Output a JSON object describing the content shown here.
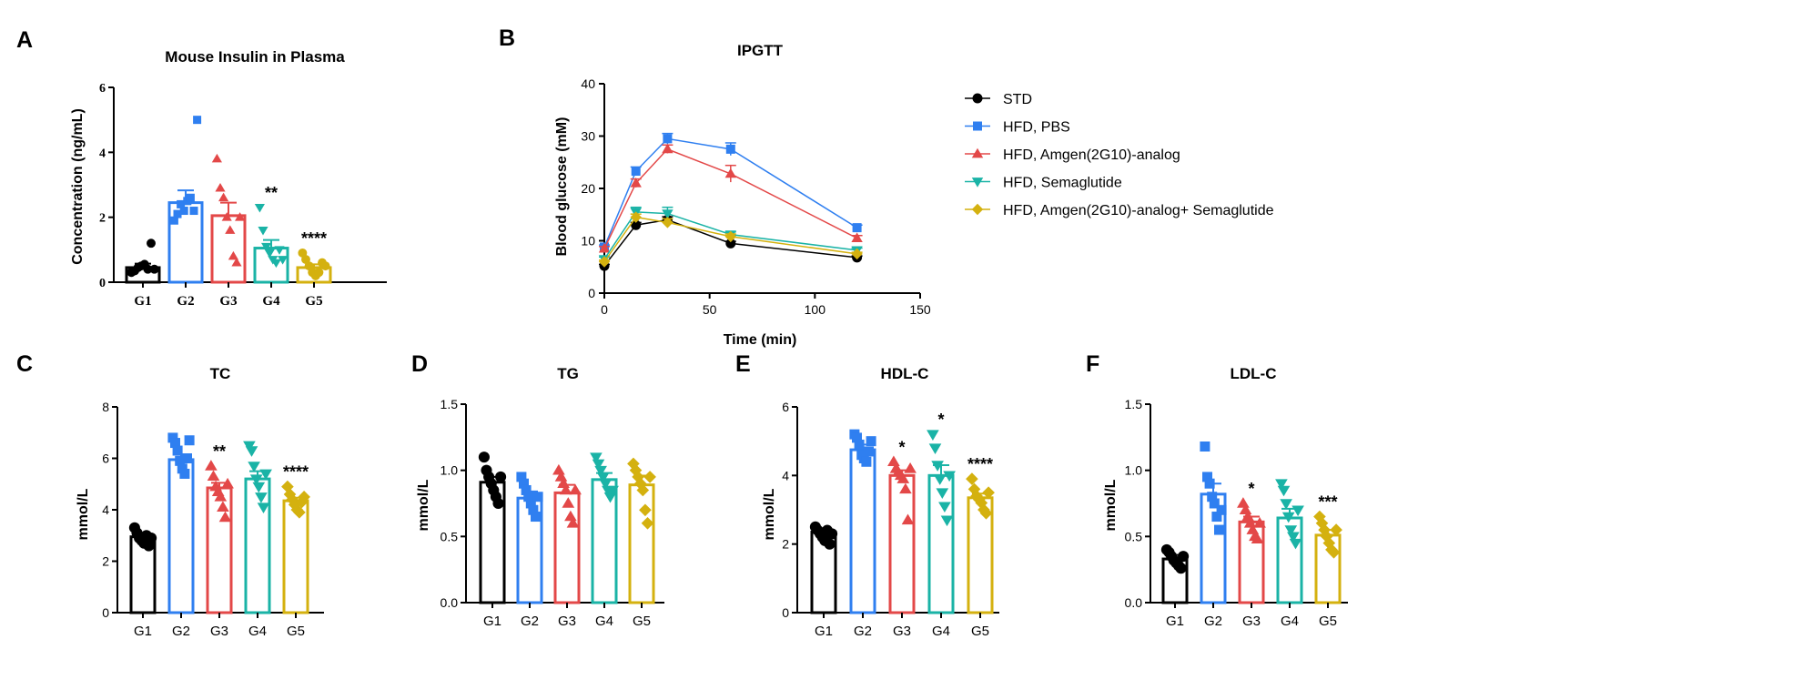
{
  "colors": {
    "G1": "#000000",
    "G2": "#2f7ff0",
    "G3": "#e34848",
    "G4": "#1ab3a6",
    "G5": "#d4b10f"
  },
  "panels": {
    "A": "A",
    "B": "B",
    "C": "C",
    "D": "D",
    "E": "E",
    "F": "F"
  },
  "chart_data": [
    {
      "id": "A",
      "type": "bar",
      "title": "Mouse  Insulin in Plasma",
      "ylabel": "Concentration (ng/mL)",
      "ylim": [
        0,
        6
      ],
      "yticks": [
        0,
        2,
        4,
        6
      ],
      "categories": [
        "G1",
        "G2",
        "G3",
        "G4",
        "G5"
      ],
      "values": [
        0.45,
        2.45,
        2.05,
        1.05,
        0.45
      ],
      "errors": [
        0.12,
        0.38,
        0.4,
        0.25,
        0.1
      ],
      "points": [
        [
          0.3,
          0.35,
          0.45,
          0.5,
          0.55,
          0.4,
          1.2,
          0.4
        ],
        [
          1.9,
          2.1,
          2.4,
          2.2,
          2.5,
          2.6,
          2.2,
          5.0
        ],
        [
          3.8,
          2.9,
          2.6,
          2.0,
          1.6,
          0.8,
          0.6,
          2.0
        ],
        [
          2.3,
          1.6,
          1.1,
          0.9,
          0.7,
          0.6,
          1.0,
          0.7
        ],
        [
          0.9,
          0.7,
          0.5,
          0.3,
          0.2,
          0.3,
          0.6,
          0.5
        ]
      ],
      "markers": [
        "circle",
        "square",
        "triangle-up",
        "triangle-down",
        "circle"
      ],
      "significance": [
        "",
        "",
        "",
        "**",
        "****"
      ]
    },
    {
      "id": "B",
      "type": "line",
      "title": "IPGTT",
      "xlabel": "Time (min)",
      "ylabel": "Blood glucose (mM)",
      "xlim": [
        0,
        150
      ],
      "ylim": [
        0,
        40
      ],
      "xticks": [
        0,
        50,
        100,
        150
      ],
      "yticks": [
        0,
        10,
        20,
        30,
        40
      ],
      "x": [
        0,
        15,
        30,
        60,
        120
      ],
      "series": [
        {
          "name": "STD",
          "values": [
            5.2,
            13.0,
            14.0,
            9.5,
            6.8
          ],
          "errors": [
            0.3,
            0.5,
            0.6,
            0.4,
            0.3
          ],
          "marker": "circle",
          "color": "#000000"
        },
        {
          "name": "HFD, PBS",
          "values": [
            8.8,
            23.3,
            29.5,
            27.5,
            12.5
          ],
          "errors": [
            0.4,
            0.8,
            1.0,
            1.2,
            0.5
          ],
          "marker": "square",
          "color": "#2f7ff0"
        },
        {
          "name": "HFD, Amgen(2G10)-analog",
          "values": [
            8.5,
            21.0,
            27.5,
            22.8,
            10.5
          ],
          "errors": [
            0.4,
            0.8,
            0.8,
            1.6,
            0.5
          ],
          "marker": "triangle-up",
          "color": "#e34848"
        },
        {
          "name": "HFD, Semaglutide",
          "values": [
            6.5,
            15.5,
            15.2,
            11.2,
            8.2
          ],
          "errors": [
            0.4,
            0.9,
            1.2,
            0.5,
            0.4
          ],
          "marker": "triangle-down",
          "color": "#1ab3a6"
        },
        {
          "name": "HFD, Amgen(2G10)-analog+ Semaglutide",
          "values": [
            6.0,
            14.5,
            13.5,
            10.8,
            7.5
          ],
          "errors": [
            0.3,
            0.6,
            0.7,
            0.5,
            0.3
          ],
          "marker": "diamond",
          "color": "#d4b10f"
        }
      ]
    },
    {
      "id": "C",
      "type": "bar",
      "title": "TC",
      "ylabel": "mmol/L",
      "ylim": [
        0,
        8
      ],
      "yticks": [
        0,
        2,
        4,
        6,
        8
      ],
      "categories": [
        "G1",
        "G2",
        "G3",
        "G4",
        "G5"
      ],
      "values": [
        2.95,
        5.95,
        4.85,
        5.2,
        4.35
      ],
      "errors": [
        0.12,
        0.2,
        0.2,
        0.3,
        0.12
      ],
      "points": [
        [
          3.3,
          3.1,
          2.9,
          2.8,
          2.7,
          3.0,
          2.6,
          2.9
        ],
        [
          6.8,
          6.6,
          6.3,
          5.9,
          5.6,
          5.4,
          6.0,
          6.7
        ],
        [
          5.7,
          5.3,
          4.9,
          4.7,
          4.5,
          4.1,
          3.7,
          5.0
        ],
        [
          6.5,
          6.3,
          5.7,
          5.2,
          4.9,
          4.5,
          4.1,
          5.4
        ],
        [
          4.9,
          4.6,
          4.4,
          4.2,
          4.0,
          3.9,
          4.3,
          4.5
        ]
      ],
      "markers": [
        "circle",
        "square",
        "triangle-up",
        "triangle-down",
        "diamond"
      ],
      "significance": [
        "",
        "",
        "**",
        "",
        "****"
      ]
    },
    {
      "id": "D",
      "type": "bar",
      "title": "TG",
      "ylabel": "mmol/L",
      "ylim": [
        0,
        1.5
      ],
      "yticks": [
        "0.0",
        "0.5",
        "1.0",
        "1.5"
      ],
      "categories": [
        "G1",
        "G2",
        "G3",
        "G4",
        "G5"
      ],
      "values": [
        0.91,
        0.79,
        0.83,
        0.93,
        0.89
      ],
      "errors": [
        0.04,
        0.05,
        0.06,
        0.05,
        0.07
      ],
      "points": [
        [
          1.1,
          1.0,
          0.95,
          0.9,
          0.85,
          0.8,
          0.75,
          0.95
        ],
        [
          0.95,
          0.9,
          0.85,
          0.8,
          0.75,
          0.7,
          0.65,
          0.8
        ],
        [
          1.0,
          0.95,
          0.9,
          0.85,
          0.75,
          0.65,
          0.6,
          0.85
        ],
        [
          1.1,
          1.05,
          1.0,
          0.95,
          0.9,
          0.85,
          0.8,
          0.85
        ],
        [
          1.05,
          1.0,
          0.95,
          0.9,
          0.85,
          0.7,
          0.6,
          0.95
        ]
      ],
      "markers": [
        "circle",
        "square",
        "triangle-up",
        "triangle-down",
        "diamond"
      ],
      "significance": [
        "",
        "",
        "",
        "",
        ""
      ]
    },
    {
      "id": "E",
      "type": "bar",
      "title": "HDL-C",
      "ylabel": "mmol/L",
      "ylim": [
        0,
        6
      ],
      "yticks": [
        0,
        2,
        4,
        6
      ],
      "categories": [
        "G1",
        "G2",
        "G3",
        "G4",
        "G5"
      ],
      "values": [
        2.35,
        4.75,
        4.0,
        4.0,
        3.35
      ],
      "errors": [
        0.08,
        0.15,
        0.15,
        0.3,
        0.12
      ],
      "points": [
        [
          2.5,
          2.4,
          2.3,
          2.2,
          2.1,
          2.4,
          2.0,
          2.3
        ],
        [
          5.2,
          5.1,
          4.9,
          4.6,
          4.5,
          4.4,
          4.7,
          5.0
        ],
        [
          4.4,
          4.2,
          4.1,
          4.0,
          3.9,
          3.6,
          2.7,
          4.2
        ],
        [
          5.2,
          4.8,
          4.3,
          3.9,
          3.5,
          3.1,
          2.7,
          4.0
        ],
        [
          3.9,
          3.6,
          3.4,
          3.3,
          3.2,
          3.0,
          2.9,
          3.5
        ]
      ],
      "markers": [
        "circle",
        "square",
        "triangle-up",
        "triangle-down",
        "diamond"
      ],
      "significance": [
        "",
        "",
        "*",
        "*",
        "****"
      ]
    },
    {
      "id": "F",
      "type": "bar",
      "title": "LDL-C",
      "ylabel": "mmol/L",
      "ylim": [
        0,
        1.5
      ],
      "yticks": [
        "0.0",
        "0.5",
        "1.0",
        "1.5"
      ],
      "categories": [
        "G1",
        "G2",
        "G3",
        "G4",
        "G5"
      ],
      "values": [
        0.33,
        0.82,
        0.61,
        0.64,
        0.51
      ],
      "errors": [
        0.03,
        0.08,
        0.04,
        0.07,
        0.04
      ],
      "points": [
        [
          0.4,
          0.38,
          0.35,
          0.32,
          0.3,
          0.28,
          0.26,
          0.35
        ],
        [
          1.18,
          0.95,
          0.9,
          0.8,
          0.75,
          0.65,
          0.55,
          0.7
        ],
        [
          0.75,
          0.7,
          0.65,
          0.6,
          0.55,
          0.5,
          0.48,
          0.6
        ],
        [
          0.9,
          0.85,
          0.75,
          0.65,
          0.55,
          0.5,
          0.45,
          0.7
        ],
        [
          0.65,
          0.6,
          0.55,
          0.5,
          0.45,
          0.4,
          0.38,
          0.55
        ]
      ],
      "markers": [
        "circle",
        "square",
        "triangle-up",
        "triangle-down",
        "diamond"
      ],
      "significance": [
        "",
        "",
        "*",
        "",
        "***"
      ]
    }
  ]
}
